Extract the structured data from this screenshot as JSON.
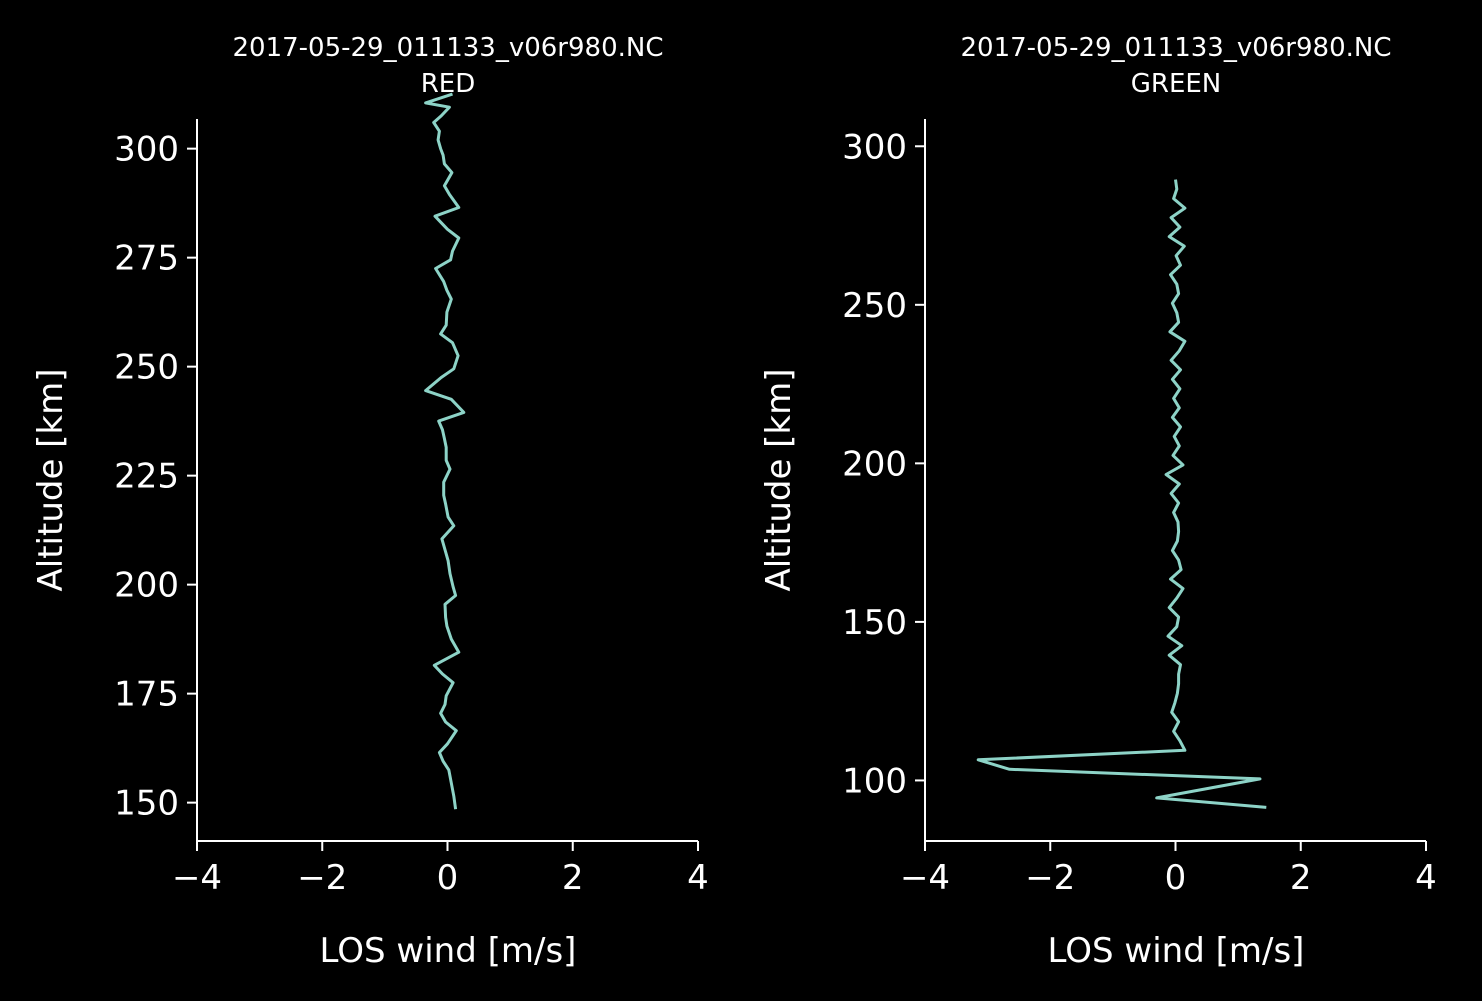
{
  "colors": {
    "background": "#000000",
    "foreground": "#ffffff",
    "line": "#8dd3c7"
  },
  "chart_data": [
    {
      "type": "line",
      "title": "2017-05-29_011133_v06r980.NC",
      "subtitle": "RED",
      "xlabel": "LOS wind [m/s]",
      "ylabel": "Altitude [km]",
      "xlim": [
        -4,
        4
      ],
      "ylim": [
        141.2,
        306.8
      ],
      "xticks": [
        -4,
        -2,
        0,
        2,
        4
      ],
      "xtick_labels": [
        "−4",
        "−2",
        "0",
        "2",
        "4"
      ],
      "yticks": [
        150,
        175,
        200,
        225,
        250,
        275,
        300
      ],
      "ytick_labels": [
        "150",
        "175",
        "200",
        "225",
        "250",
        "275",
        "300"
      ],
      "grid": false,
      "series": [
        {
          "x": [
            0.13,
            0.1,
            0.06,
            0.02,
            -0.07,
            -0.13,
            0.0,
            0.14,
            -0.03,
            -0.11,
            -0.04,
            -0.02,
            0.09,
            -0.08,
            -0.21,
            0.18,
            0.06,
            -0.01,
            -0.03,
            -0.04,
            0.13,
            0.09,
            0.04,
            0.01,
            -0.03,
            -0.09,
            0.1,
            0.01,
            -0.03,
            -0.06,
            -0.06,
            0.04,
            -0.02,
            -0.02,
            -0.05,
            -0.08,
            -0.14,
            0.26,
            0.06,
            -0.35,
            -0.1,
            0.1,
            0.17,
            0.08,
            -0.11,
            -0.02,
            -0.01,
            0.06,
            -0.01,
            -0.06,
            -0.19,
            0.05,
            0.08,
            0.18,
            0.0,
            -0.2,
            0.18,
            0.03,
            -0.05,
            0.07,
            -0.05,
            -0.07,
            -0.11,
            -0.15,
            -0.13,
            -0.22,
            -0.1,
            0.03,
            -0.35,
            0.08
          ],
          "y": [
            148.5,
            151.5,
            154.5,
            157.5,
            159.5,
            161.5,
            163.5,
            166.5,
            168.5,
            170.5,
            172.5,
            174.5,
            177.5,
            179.5,
            181.5,
            184.5,
            187.5,
            190.5,
            192.5,
            195.5,
            197.5,
            199.5,
            202.5,
            205.5,
            207.5,
            210.5,
            213.5,
            215.5,
            218.5,
            220.5,
            223.5,
            226.5,
            228.5,
            231.5,
            233.5,
            235.5,
            237.5,
            239.5,
            242.5,
            244.5,
            247.5,
            249.5,
            252.5,
            255.5,
            257.5,
            259.5,
            262.5,
            265.5,
            267.5,
            269.5,
            272.5,
            274.5,
            276.5,
            279.5,
            281.5,
            284.5,
            286.5,
            289.5,
            291.5,
            294.5,
            296.5,
            298.5,
            300.0,
            302.0,
            304.0,
            306.0,
            307.5,
            309.5,
            310.5,
            312.5
          ]
        }
      ]
    },
    {
      "type": "line",
      "title": "2017-05-29_011133_v06r980.NC",
      "subtitle": "GREEN",
      "xlabel": "LOS wind [m/s]",
      "ylabel": "Altitude [km]",
      "xlim": [
        -4,
        4
      ],
      "ylim": [
        80.9,
        308.6
      ],
      "xticks": [
        -4,
        -2,
        0,
        2,
        4
      ],
      "xtick_labels": [
        "−4",
        "−2",
        "0",
        "2",
        "4"
      ],
      "yticks": [
        100,
        150,
        200,
        250,
        300
      ],
      "ytick_labels": [
        "100",
        "150",
        "200",
        "250",
        "300"
      ],
      "grid": false,
      "series": [
        {
          "x": [
            1.45,
            -0.3,
            1.35,
            -2.65,
            -3.15,
            0.15,
            0.07,
            -0.03,
            0.05,
            -0.06,
            -0.01,
            0.03,
            0.05,
            0.05,
            0.08,
            -0.1,
            0.1,
            -0.12,
            0.02,
            0.05,
            -0.1,
            0.02,
            0.12,
            -0.08,
            0.09,
            0.05,
            -0.05,
            0.03,
            0.05,
            0.04,
            -0.03,
            0.05,
            -0.07,
            0.06,
            -0.15,
            0.12,
            -0.04,
            0.06,
            -0.02,
            0.08,
            -0.05,
            0.06,
            -0.03,
            0.07,
            -0.05,
            0.08,
            -0.07,
            0.06,
            0.15,
            -0.09,
            0.05,
            0.02,
            -0.05,
            0.05,
            0.02,
            -0.08,
            0.08,
            0.01,
            0.14,
            -0.1,
            0.07,
            -0.07,
            0.15,
            -0.03,
            0.02,
            0.0
          ],
          "y": [
            91.5,
            94.5,
            100.5,
            103.5,
            106.5,
            109.5,
            112.5,
            115.5,
            118.5,
            121.5,
            124.5,
            127.5,
            130.5,
            133.5,
            136.5,
            139.5,
            142.5,
            145.5,
            148.5,
            151.5,
            154.5,
            157.5,
            160.5,
            163.5,
            166.5,
            169.5,
            172.5,
            175.5,
            178.5,
            181.5,
            184.5,
            187.5,
            190.5,
            193.5,
            196.5,
            199.5,
            202.5,
            205.5,
            208.5,
            211.5,
            214.5,
            217.5,
            220.5,
            223.5,
            226.5,
            229.5,
            232.5,
            235.5,
            238.5,
            241.5,
            244.5,
            247.5,
            250.5,
            253.5,
            256.5,
            259.5,
            262.5,
            265.5,
            268.5,
            271.5,
            274.5,
            277.5,
            280.5,
            283.5,
            286.5,
            289.5
          ]
        }
      ]
    }
  ]
}
